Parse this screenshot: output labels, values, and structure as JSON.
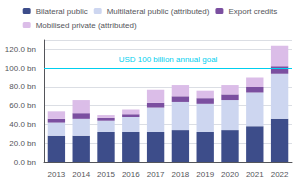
{
  "chart_data": {
    "type": "bar",
    "stacked": true,
    "categories": [
      "2013",
      "2014",
      "2015",
      "2016",
      "2017",
      "2018",
      "2019",
      "2020",
      "2021",
      "2022"
    ],
    "series": [
      {
        "name": "Bilateral public",
        "color": "#3d4d8a",
        "values": [
          28,
          28,
          32,
          32,
          32,
          34,
          32,
          34,
          38,
          46
        ]
      },
      {
        "name": "Multilateral public (attributed)",
        "color": "#cdd6f0",
        "values": [
          14,
          18,
          12,
          16,
          26,
          30,
          30,
          32,
          36,
          48
        ]
      },
      {
        "name": "Export credits",
        "color": "#7b4fa0",
        "values": [
          4,
          6,
          3,
          3,
          5,
          6,
          6,
          6,
          6,
          8
        ]
      },
      {
        "name": "Mobilised private (attributed)",
        "color": "#dbbde8",
        "values": [
          8,
          14,
          3,
          5,
          14,
          12,
          8,
          10,
          10,
          22
        ]
      }
    ],
    "annotations": [
      {
        "text": "USD 100 billion annual goal",
        "y": 100,
        "color": "#00cfef"
      }
    ],
    "ylim": [
      0,
      130
    ],
    "yticks": [
      {
        "value": 0,
        "label": "0.0 bn"
      },
      {
        "value": 20,
        "label": "20.0 bn"
      },
      {
        "value": 40,
        "label": "40.0 bn"
      },
      {
        "value": 60,
        "label": "60.0 bn"
      },
      {
        "value": 80,
        "label": "80.0 bn"
      },
      {
        "value": 100,
        "label": "100.0 bn"
      },
      {
        "value": 120,
        "label": "120.0 bn"
      }
    ],
    "grid": true,
    "legend": "top"
  }
}
